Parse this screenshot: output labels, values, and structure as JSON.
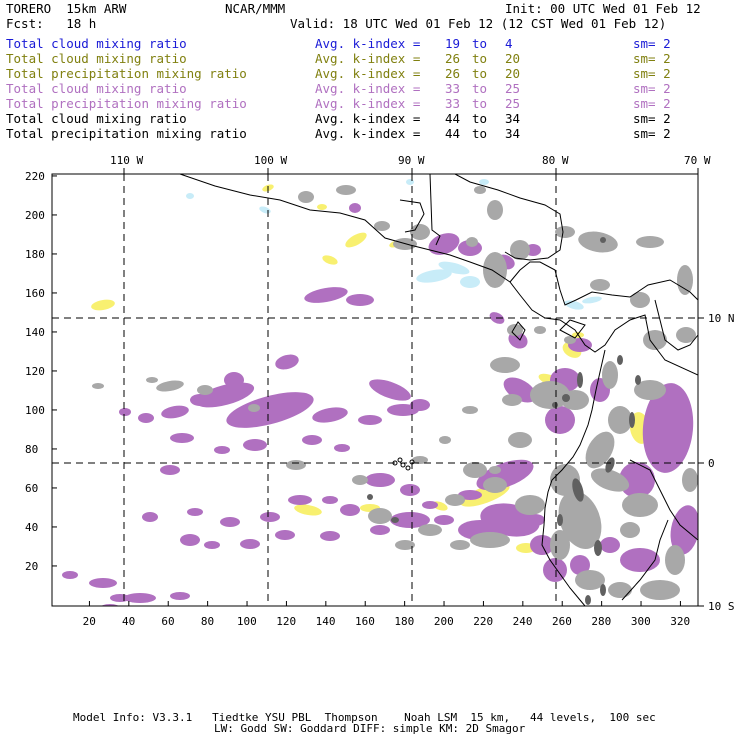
{
  "header": {
    "model": "TORERO  15km ARW",
    "org": "NCAR/MMM",
    "init": "Init: 00 UTC Wed 01 Feb 12",
    "fcst": "Fcst:   18 h",
    "valid": "Valid: 18 UTC Wed 01 Feb 12 (12 CST Wed 01 Feb 12)"
  },
  "legend": [
    {
      "label": "Total cloud mixing ratio",
      "avg": "Avg. k-index =",
      "lo": "19",
      "to": "to",
      "hi": "4",
      "sm": "sm= 2",
      "color": "#1a1ad6"
    },
    {
      "label": "Total cloud mixing ratio",
      "avg": "Avg. k-index =",
      "lo": "26",
      "to": "to",
      "hi": "20",
      "sm": "sm= 2",
      "color": "#808010"
    },
    {
      "label": "Total precipitation mixing ratio",
      "avg": "Avg. k-index =",
      "lo": "26",
      "to": "to",
      "hi": "20",
      "sm": "sm= 2",
      "color": "#808010"
    },
    {
      "label": "Total cloud mixing ratio",
      "avg": "Avg. k-index =",
      "lo": "33",
      "to": "to",
      "hi": "25",
      "sm": "sm= 2",
      "color": "#b070c0"
    },
    {
      "label": "Total precipitation mixing ratio",
      "avg": "Avg. k-index =",
      "lo": "33",
      "to": "to",
      "hi": "25",
      "sm": "sm= 2",
      "color": "#b070c0"
    },
    {
      "label": "Total cloud mixing ratio",
      "avg": "Avg. k-index =",
      "lo": "44",
      "to": "to",
      "hi": "34",
      "sm": "sm= 2",
      "color": "#000000"
    },
    {
      "label": "Total precipitation mixing ratio",
      "avg": "Avg. k-index =",
      "lo": "44",
      "to": "to",
      "hi": "34",
      "sm": "sm= 2",
      "color": "#000000"
    }
  ],
  "axes": {
    "lon_labels": [
      "110 W",
      "100 W",
      "90 W",
      "80 W",
      "70 W"
    ],
    "lat_labels": [
      "10 N",
      "0",
      "10 S"
    ],
    "y_ticks": [
      "220",
      "200",
      "180",
      "160",
      "140",
      "120",
      "100",
      "80",
      "60",
      "40",
      "20"
    ],
    "x_ticks": [
      "20",
      "40",
      "60",
      "80",
      "100",
      "120",
      "140",
      "160",
      "180",
      "200",
      "220",
      "240",
      "260",
      "280",
      "300",
      "320"
    ]
  },
  "footer": {
    "line1": "Model Info: V3.3.1   Tiedtke YSU PBL  Thompson    Noah LSM  15 km,   44 levels,  100 sec",
    "line2": "LW: Godd SW: Goddard DIFF: simple KM: 2D Smagor"
  },
  "colors": {
    "cyan": "#c8ecf8",
    "yellow": "#f8f070",
    "purple": "#b070c0",
    "gray": "#a8a8a8",
    "darkgray": "#606060"
  }
}
